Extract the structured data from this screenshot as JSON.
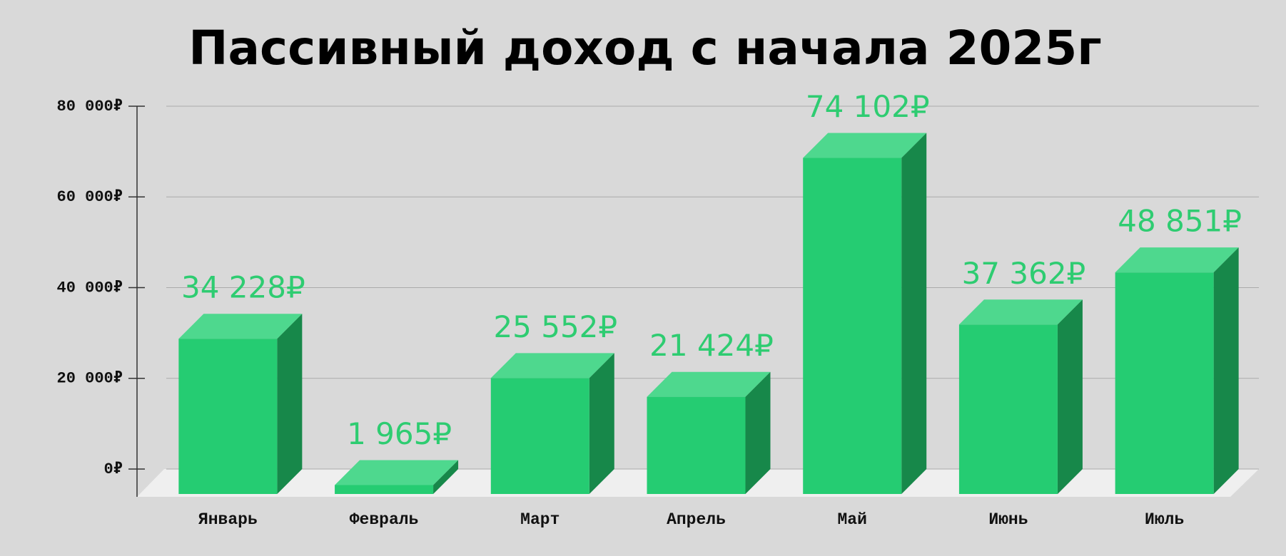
{
  "chart_data": {
    "type": "bar3d",
    "title": "Пассивный доход с начала 2025г",
    "categories": [
      "Январь",
      "Февраль",
      "Март",
      "Апрель",
      "Май",
      "Июнь",
      "Июль"
    ],
    "values": [
      34228,
      1965,
      25552,
      21424,
      74102,
      37362,
      48851
    ],
    "value_labels": [
      "34 228₽",
      "1 965₽",
      "25 552₽",
      "21 424₽",
      "74 102₽",
      "37 362₽",
      "48 851₽"
    ],
    "color": "#25cc72",
    "ylim": [
      0,
      80000
    ],
    "yticks": [
      {
        "value": 0,
        "label": "0₽"
      },
      {
        "value": 20000,
        "label": "20 000₽"
      },
      {
        "value": 40000,
        "label": "40 000₽"
      },
      {
        "value": 60000,
        "label": "60 000₽"
      },
      {
        "value": 80000,
        "label": "80 000₽"
      }
    ],
    "grid": true
  }
}
